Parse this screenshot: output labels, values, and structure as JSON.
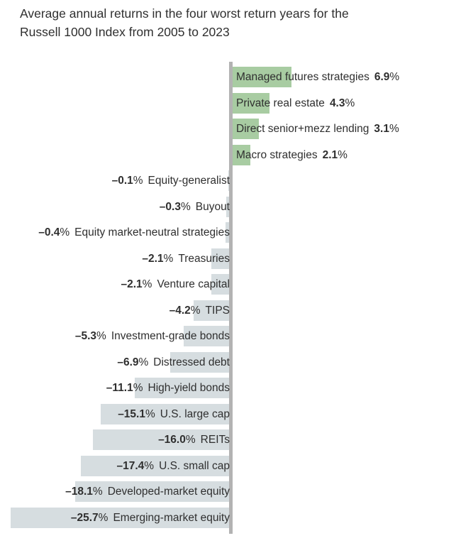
{
  "header": {
    "line1": "Average annual returns in the four worst return years for the",
    "line2": "Russell 1000 Index from 2005 to 2023"
  },
  "chart_data": {
    "type": "bar",
    "orientation": "horizontal-diverging",
    "title": "Average annual returns in the four worst return years for the Russell 1000 Index from 2005 to 2023",
    "unit": "%",
    "categories": [
      "Managed futures strategies",
      "Private real estate",
      "Direct senior+mezz lending",
      "Macro strategies",
      "Equity-generalist",
      "Buyout",
      "Equity market-neutral strategies",
      "Treasuries",
      "Venture capital",
      "TIPS",
      "Investment-grade bonds",
      "Distressed debt",
      "High-yield bonds",
      "U.S. large cap",
      "REITs",
      "U.S. small cap",
      "Developed-market equity",
      "Emerging-market equity"
    ],
    "values": [
      6.9,
      4.3,
      3.1,
      2.1,
      -0.1,
      -0.3,
      -0.4,
      -2.1,
      -2.1,
      -4.2,
      -5.3,
      -6.9,
      -11.1,
      -15.1,
      -16.0,
      -17.4,
      -18.1,
      -25.7
    ],
    "value_display": [
      "6.9",
      "4.3",
      "3.1",
      "2.1",
      "–0.1",
      "–0.3",
      "–0.4",
      "–2.1",
      "–2.1",
      "–4.2",
      "–5.3",
      "–6.9",
      "–11.1",
      "–15.1",
      "–16.0",
      "–17.4",
      "–18.1",
      "–25.7"
    ],
    "xlim": [
      -26,
      7
    ],
    "grid": false,
    "legend": false,
    "colors": {
      "positive_bar": "#a8cca2",
      "negative_bar": "#d6dde0",
      "axis_line": "#b3b3b3",
      "text": "#2f2f2f"
    }
  }
}
